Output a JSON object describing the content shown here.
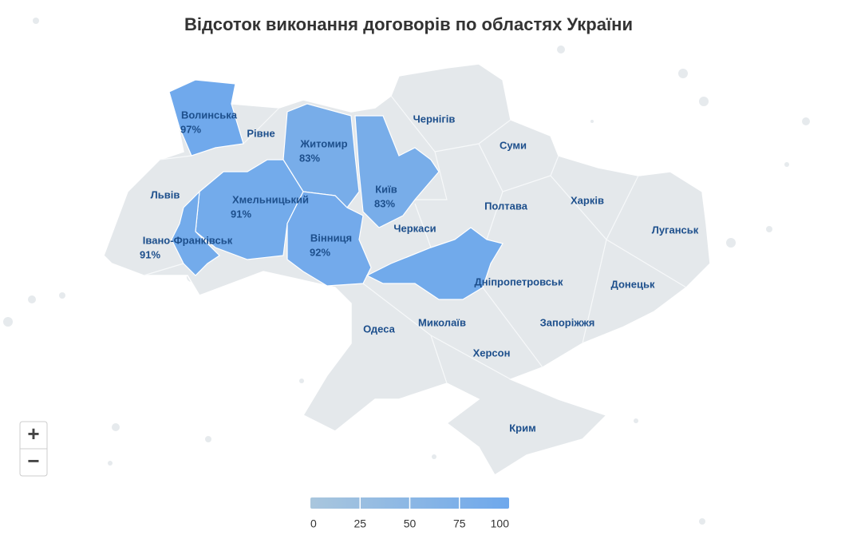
{
  "chart_data": {
    "type": "map",
    "title": "Відсоток виконання договорів по областях України",
    "regions": [
      {
        "name": "Волинська",
        "value": 97,
        "value_label": "97%"
      },
      {
        "name": "Рівне"
      },
      {
        "name": "Житомир",
        "value": 83,
        "value_label": "83%"
      },
      {
        "name": "Чернігів"
      },
      {
        "name": "Суми"
      },
      {
        "name": "Київ",
        "value": 83,
        "value_label": "83%"
      },
      {
        "name": "Львів"
      },
      {
        "name": "Хмельницький",
        "value": 91,
        "value_label": "91%"
      },
      {
        "name": "Полтава"
      },
      {
        "name": "Харків"
      },
      {
        "name": "Черкаси"
      },
      {
        "name": "Луганськ"
      },
      {
        "name": "Івано-Франківськ",
        "value": 91,
        "value_label": "91%"
      },
      {
        "name": "Вінниця",
        "value": 92,
        "value_label": "92%"
      },
      {
        "name": "Дніпропетровськ",
        "value": 95
      },
      {
        "name": "Донецьк"
      },
      {
        "name": "Одеса"
      },
      {
        "name": "Миколаїв"
      },
      {
        "name": "Запоріжжя"
      },
      {
        "name": "Херсон"
      },
      {
        "name": "Крим"
      }
    ],
    "no_data_color": "#e4e8eb",
    "colorbar": {
      "range": [
        0,
        100
      ],
      "ticks": [
        0,
        25,
        50,
        75,
        100
      ],
      "colors": [
        "#a9c6dd",
        "#6ea8ec"
      ]
    },
    "controls": [
      "+",
      "−"
    ]
  }
}
